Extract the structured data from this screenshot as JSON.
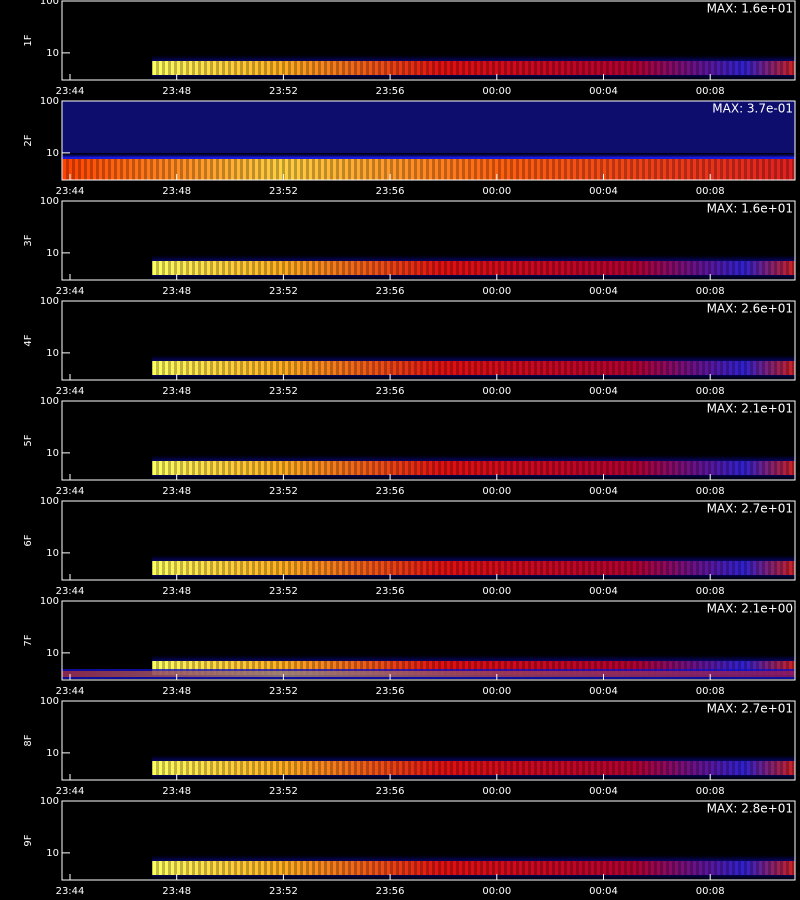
{
  "chart_data": [
    {
      "type": "spectrogram",
      "ylabel": "1F",
      "annotation": "MAX: 1.6e+01",
      "yscale": "log",
      "ylim": [
        3,
        100
      ],
      "yticks": [
        10,
        100
      ],
      "xticks": [
        "23:44",
        "23:48",
        "23:52",
        "23:56",
        "00:00",
        "00:04",
        "00:08"
      ]
    },
    {
      "type": "spectrogram",
      "ylabel": "2F",
      "annotation": "MAX: 3.7e-01",
      "yscale": "log",
      "ylim": [
        3,
        100
      ],
      "yticks": [
        10,
        100
      ],
      "xticks": [
        "23:44",
        "23:48",
        "23:52",
        "23:56",
        "00:00",
        "00:04",
        "00:08"
      ]
    },
    {
      "type": "spectrogram",
      "ylabel": "3F",
      "annotation": "MAX: 1.6e+01",
      "yscale": "log",
      "ylim": [
        3,
        100
      ],
      "yticks": [
        10,
        100
      ],
      "xticks": [
        "23:44",
        "23:48",
        "23:52",
        "23:56",
        "00:00",
        "00:04",
        "00:08"
      ]
    },
    {
      "type": "spectrogram",
      "ylabel": "4F",
      "annotation": "MAX: 2.6e+01",
      "yscale": "log",
      "ylim": [
        3,
        100
      ],
      "yticks": [
        10,
        100
      ],
      "xticks": [
        "23:44",
        "23:48",
        "23:52",
        "23:56",
        "00:00",
        "00:04",
        "00:08"
      ]
    },
    {
      "type": "spectrogram",
      "ylabel": "5F",
      "annotation": "MAX: 2.1e+01",
      "yscale": "log",
      "ylim": [
        3,
        100
      ],
      "yticks": [
        10,
        100
      ],
      "xticks": [
        "23:44",
        "23:48",
        "23:52",
        "23:56",
        "00:00",
        "00:04",
        "00:08"
      ]
    },
    {
      "type": "spectrogram",
      "ylabel": "6F",
      "annotation": "MAX: 2.7e+01",
      "yscale": "log",
      "ylim": [
        3,
        100
      ],
      "yticks": [
        10,
        100
      ],
      "xticks": [
        "23:44",
        "23:48",
        "23:52",
        "23:56",
        "00:00",
        "00:04",
        "00:08"
      ]
    },
    {
      "type": "spectrogram",
      "ylabel": "7F",
      "annotation": "MAX: 2.1e+00",
      "yscale": "log",
      "ylim": [
        3,
        100
      ],
      "yticks": [
        10,
        100
      ],
      "xticks": [
        "23:44",
        "23:48",
        "23:52",
        "23:56",
        "00:00",
        "00:04",
        "00:08"
      ]
    },
    {
      "type": "spectrogram",
      "ylabel": "8F",
      "annotation": "MAX: 2.7e+01",
      "yscale": "log",
      "ylim": [
        3,
        100
      ],
      "yticks": [
        10,
        100
      ],
      "xticks": [
        "23:44",
        "23:48",
        "23:52",
        "23:56",
        "00:00",
        "00:04",
        "00:08"
      ]
    },
    {
      "type": "spectrogram",
      "ylabel": "9F",
      "annotation": "MAX: 2.8e+01",
      "yscale": "log",
      "ylim": [
        3,
        100
      ],
      "yticks": [
        10,
        100
      ],
      "xticks": [
        "23:44",
        "23:48",
        "23:52",
        "23:56",
        "00:00",
        "00:04",
        "00:08"
      ]
    }
  ]
}
